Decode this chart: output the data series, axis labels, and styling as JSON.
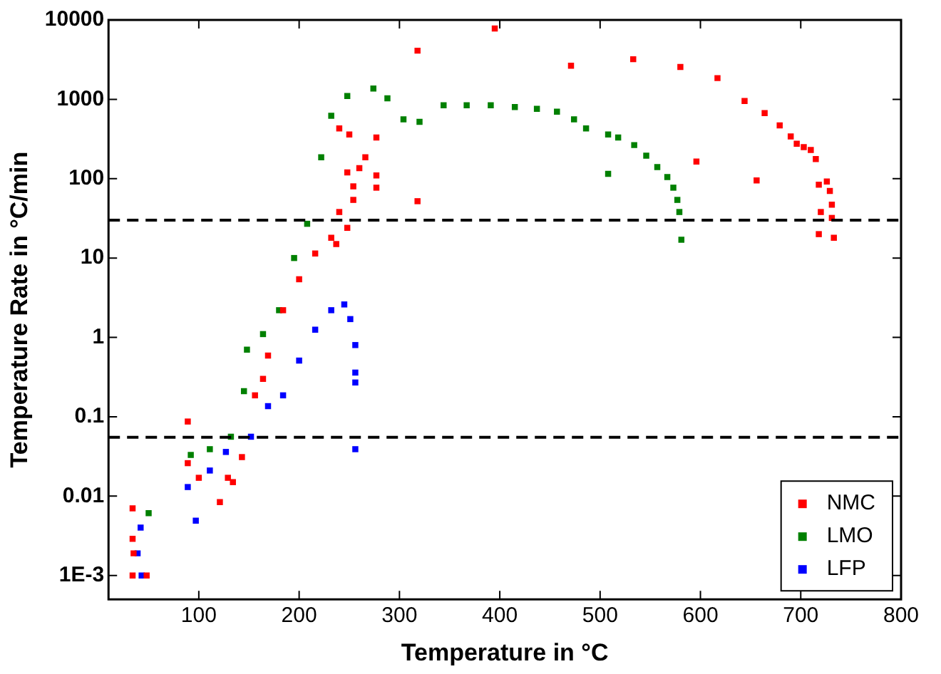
{
  "chart_data": {
    "type": "scatter",
    "xlabel": "Temperature in °C",
    "ylabel": "Temperature Rate in °C/min",
    "log": "y",
    "grid": false,
    "marker": "square",
    "legend": "bottom right",
    "xlim": [
      10,
      800
    ],
    "xticks": [
      100,
      200,
      300,
      400,
      500,
      600,
      700,
      800
    ],
    "ylim": [
      0.0005,
      10000
    ],
    "yticks": [
      {
        "value": 0.001,
        "label": "1E-3"
      },
      0.01,
      0.1,
      1,
      10,
      100,
      1000,
      10000
    ],
    "ref_lines": [
      {
        "axis": "y",
        "value": 30,
        "line_style": "dashed",
        "color": "#000000"
      },
      {
        "axis": "y",
        "value": 0.055,
        "line_style": "dashed",
        "color": "#000000"
      }
    ],
    "series": [
      {
        "name": "NMC",
        "color": "#ff0000",
        "x": [
          34,
          34,
          35,
          34,
          48,
          89,
          89,
          100,
          121,
          134,
          129,
          143,
          156,
          164,
          169,
          184,
          200,
          216,
          232,
          237,
          240,
          248,
          240,
          250,
          277,
          266,
          260,
          254,
          277,
          277,
          254,
          248,
          318,
          318,
          395,
          471,
          533,
          580,
          617,
          596,
          644,
          664,
          679,
          690,
          696,
          703,
          710,
          715,
          656,
          718,
          726,
          729,
          731,
          720,
          731,
          718,
          733
        ],
        "values": [
          0.007,
          0.0029,
          0.0019,
          0.001,
          0.001,
          0.087,
          0.026,
          0.017,
          0.0084,
          0.015,
          0.017,
          0.031,
          0.186,
          0.3,
          0.59,
          2.2,
          5.4,
          11.4,
          18,
          15,
          38,
          120,
          430,
          360,
          330,
          186,
          136,
          80,
          110,
          77,
          54,
          24,
          52,
          4100,
          7800,
          2650,
          3200,
          2550,
          1850,
          164,
          950,
          670,
          470,
          340,
          275,
          250,
          230,
          177,
          95,
          84,
          92,
          70,
          47,
          38,
          32,
          20,
          18
        ]
      },
      {
        "name": "LMO",
        "color": "#008000",
        "x": [
          50,
          92,
          111,
          132,
          145,
          148,
          164,
          180,
          195,
          208,
          222,
          232,
          248,
          274,
          288,
          304,
          320,
          344,
          367,
          391,
          415,
          437,
          457,
          474,
          486,
          508,
          518,
          534,
          508,
          546,
          557,
          567,
          573,
          577,
          579,
          581
        ],
        "values": [
          0.0061,
          0.033,
          0.039,
          0.056,
          0.21,
          0.7,
          1.1,
          2.2,
          10,
          27,
          186,
          620,
          1100,
          1370,
          1030,
          560,
          520,
          840,
          840,
          840,
          800,
          760,
          700,
          560,
          430,
          360,
          330,
          265,
          115,
          195,
          140,
          105,
          77,
          54,
          38,
          17
        ]
      },
      {
        "name": "LFP",
        "color": "#0000ff",
        "x": [
          42,
          39,
          43,
          89,
          97,
          111,
          127,
          152,
          169,
          184,
          200,
          216,
          232,
          245,
          251,
          256,
          256,
          256,
          256
        ],
        "values": [
          0.004,
          0.0019,
          0.001,
          0.013,
          0.0049,
          0.021,
          0.036,
          0.056,
          0.136,
          0.186,
          0.51,
          1.25,
          2.2,
          2.6,
          1.7,
          0.8,
          0.36,
          0.27,
          0.039
        ]
      }
    ]
  }
}
